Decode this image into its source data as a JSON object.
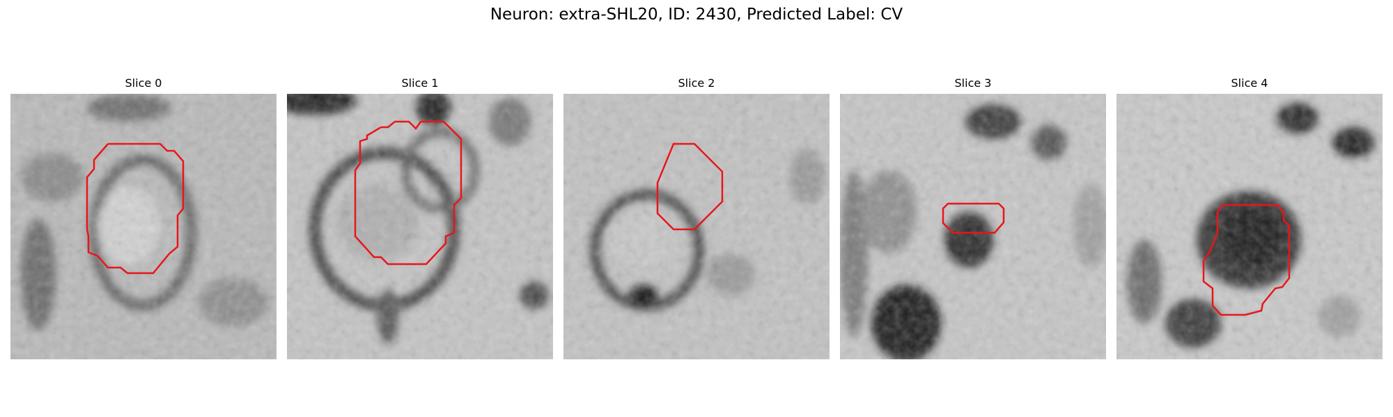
{
  "figure": {
    "title": "Neuron: extra-SHL20, ID: 2430, Predicted Label: CV",
    "outline_color": "#e8161b"
  },
  "panels": [
    {
      "title": "Slice 0"
    },
    {
      "title": "Slice 1"
    },
    {
      "title": "Slice 2"
    },
    {
      "title": "Slice 3"
    },
    {
      "title": "Slice 4"
    }
  ]
}
